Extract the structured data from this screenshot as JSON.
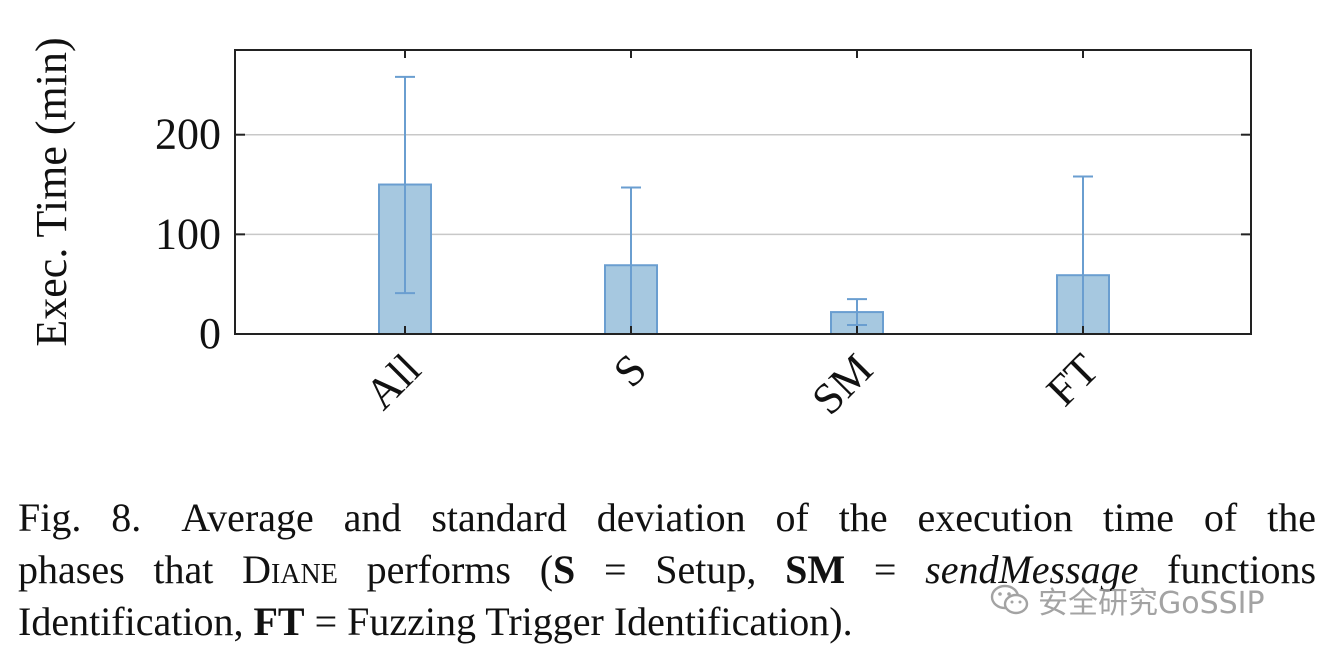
{
  "chart_data": {
    "type": "bar",
    "categories": [
      "All",
      "S",
      "SM",
      "FT"
    ],
    "values": [
      150,
      69,
      22,
      59
    ],
    "error_upper": [
      258,
      147,
      35,
      158
    ],
    "error_lower": [
      41,
      0,
      9,
      0
    ],
    "ylabel": "Exec. Time (min)",
    "yticks": [
      0,
      100,
      200
    ],
    "ylim": [
      0,
      285
    ],
    "grid": "horizontal",
    "bar_color": "#a6c8e0",
    "bar_stroke": "#6a9ed0"
  },
  "caption": {
    "prefix": "Fig. 8.",
    "text_1": "Average and standard deviation of the execution time of the",
    "text_2a": "phases that ",
    "tool_name": "Diane",
    "text_2b": " performs (",
    "s_abbr": "S",
    "s_def": " = Setup, ",
    "sm_abbr": "SM",
    "sm_eq": " = ",
    "sm_func": "sendMessage",
    "sm_def": " functions",
    "text_3a": "Identification, ",
    "ft_abbr": "FT",
    "ft_def": " = Fuzzing Trigger Identification)."
  },
  "watermark": {
    "icon": "wechat-icon",
    "text": "安全研究GoSSIP"
  }
}
